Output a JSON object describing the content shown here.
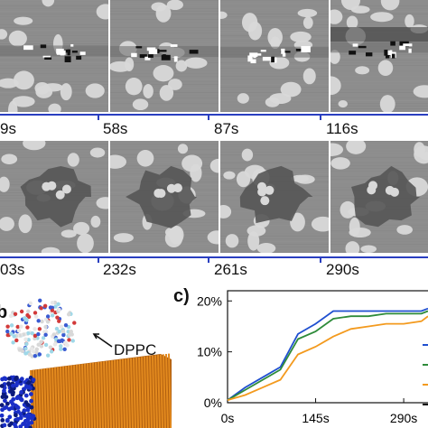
{
  "timeline_row1": {
    "labels": [
      "9s",
      "58s",
      "87s",
      "116s"
    ],
    "axis_color": "#2a3fc0"
  },
  "timeline_row2": {
    "labels": [
      "03s",
      "232s",
      "261s",
      "290s"
    ],
    "axis_color": "#2a3fc0"
  },
  "panel_b": {
    "letter": "b",
    "molecule_label": "DPPC",
    "colors": {
      "lipid": "#e38a1e",
      "protein": "#1a2fc8"
    }
  },
  "panel_c": {
    "letter": "c)"
  },
  "chart_data": {
    "type": "line",
    "x_tick_labels": [
      "0s",
      "145s",
      "290s"
    ],
    "y_tick_labels": [
      "0%",
      "10%",
      "20%"
    ],
    "xlim": [
      0,
      330
    ],
    "ylim": [
      0,
      22
    ],
    "x": [
      0,
      29,
      58,
      87,
      116,
      145,
      174,
      203,
      232,
      261,
      290,
      319,
      330
    ],
    "series": [
      {
        "color": "#1f4fd0",
        "values": [
          0.5,
          3.0,
          5.0,
          7.0,
          13.5,
          15.5,
          18.0,
          18.0,
          18.0,
          18.0,
          18.0,
          18.0,
          18.5
        ]
      },
      {
        "color": "#2e8b3a",
        "values": [
          0.5,
          2.5,
          4.5,
          6.5,
          12.5,
          14.0,
          16.5,
          17.0,
          17.0,
          17.5,
          17.5,
          17.5,
          18.0
        ]
      },
      {
        "color": "#f39a1e",
        "values": [
          0.5,
          1.5,
          3.0,
          4.5,
          9.5,
          11.0,
          13.0,
          14.5,
          15.0,
          15.5,
          15.5,
          16.0,
          17.0
        ]
      }
    ]
  }
}
